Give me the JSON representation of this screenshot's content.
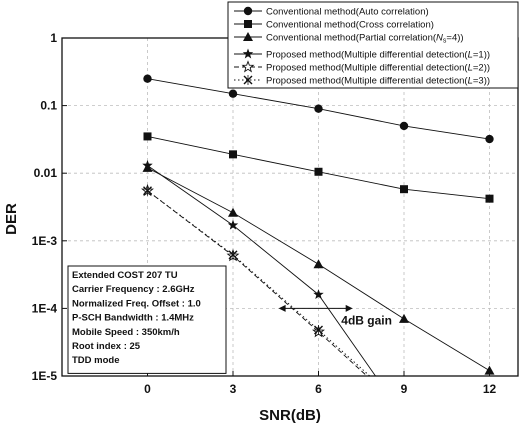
{
  "chart_data": {
    "type": "line",
    "title": "",
    "xlabel": "SNR(dB)",
    "ylabel": "DER",
    "x": [
      0,
      3,
      6,
      9,
      12
    ],
    "x_ticks": [
      "0",
      "3",
      "6",
      "9",
      "12"
    ],
    "xlim": [
      -3,
      13
    ],
    "y_scale": "log",
    "ylim": [
      1e-05,
      1
    ],
    "y_ticks": [
      {
        "value": 1,
        "label": "1"
      },
      {
        "value": 0.1,
        "label": "0.1"
      },
      {
        "value": 0.01,
        "label": "0.01"
      },
      {
        "value": 0.001,
        "label": "1E-3"
      },
      {
        "value": 0.0001,
        "label": "1E-4"
      },
      {
        "value": 1e-05,
        "label": "1E-5"
      }
    ],
    "grid": true,
    "legend_position": "top-right",
    "series": [
      {
        "name": "Conventional method(Auto correlation)",
        "marker": "circle",
        "dash": "solid",
        "points": [
          [
            0,
            0.25
          ],
          [
            3,
            0.15
          ],
          [
            6,
            0.09
          ],
          [
            9,
            0.05
          ],
          [
            12,
            0.032
          ]
        ]
      },
      {
        "name": "Conventional method(Cross correlation)",
        "marker": "square",
        "dash": "solid",
        "points": [
          [
            0,
            0.035
          ],
          [
            3,
            0.019
          ],
          [
            6,
            0.0105
          ],
          [
            9,
            0.0058
          ],
          [
            12,
            0.0042
          ]
        ]
      },
      {
        "name": "Conventional method(Partial correlation(N_s=4))",
        "name_parts": [
          "Conventional method(Partial correlation(",
          "N",
          "s",
          "=4))"
        ],
        "marker": "triangle",
        "dash": "solid",
        "points": [
          [
            0,
            0.012
          ],
          [
            3,
            0.0026
          ],
          [
            6,
            0.00045
          ],
          [
            9,
            7e-05
          ],
          [
            12,
            1.2e-05
          ]
        ]
      },
      {
        "name": "Proposed method(Multiple differential detection(L=1))",
        "name_parts": [
          "Proposed method(Multiple differential detection(",
          "L",
          "=1))"
        ],
        "marker": "star",
        "dash": "solid",
        "points": [
          [
            0,
            0.013
          ],
          [
            3,
            0.0017
          ],
          [
            6,
            0.00016
          ],
          [
            8,
            1e-05
          ]
        ]
      },
      {
        "name": "Proposed method(Multiple differential detection(L=2))",
        "name_parts": [
          "Proposed method(Multiple differential detection(",
          "L",
          "=2))"
        ],
        "marker": "star-open",
        "dash": "dashed",
        "points": [
          [
            0,
            0.0055
          ],
          [
            3,
            0.0006
          ],
          [
            6,
            4.5e-05
          ],
          [
            7.7,
            1e-05
          ]
        ]
      },
      {
        "name": "Proposed method(Multiple differential detection(L=3))",
        "name_parts": [
          "Proposed method(Multiple differential detection(",
          "L",
          "=3))"
        ],
        "marker": "x",
        "dash": "dotted",
        "points": [
          [
            0,
            0.0055
          ],
          [
            3,
            0.00062
          ],
          [
            6,
            4.8e-05
          ],
          [
            7.8,
            1e-05
          ]
        ]
      }
    ],
    "annotation": {
      "text": "4dB gain",
      "arrow_from_x": 4.6,
      "arrow_to_x": 7.2,
      "y": 0.0001
    },
    "info_box": [
      "Extended COST 207 TU",
      "Carrier Frequency : 2.6GHz",
      "Normalized Freq. Offset : 1.0",
      "P-SCH Bandwidth : 1.4MHz",
      "Mobile Speed : 350km/h",
      "Root index : 25",
      "TDD mode"
    ]
  }
}
